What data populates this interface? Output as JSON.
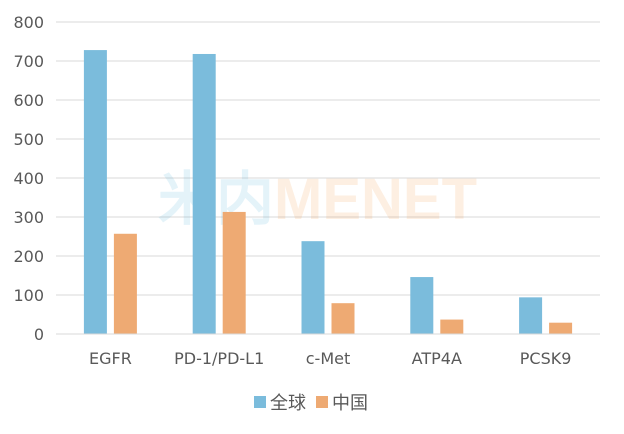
{
  "watermark": {
    "prefix": "米内",
    "suffix": "MENET"
  },
  "chart_data": {
    "type": "bar",
    "categories": [
      "EGFR",
      "PD-1/PD-L1",
      "c-Met",
      "ATP4A",
      "PCSK9"
    ],
    "series": [
      {
        "name": "全球",
        "color": "#7bbcdc",
        "values": [
          728,
          718,
          238,
          146,
          94
        ]
      },
      {
        "name": "中国",
        "color": "#eeaa73",
        "values": [
          257,
          313,
          79,
          37,
          29
        ]
      }
    ],
    "title": "",
    "xlabel": "",
    "ylabel": "",
    "ylim": [
      0,
      800
    ],
    "yticks": [
      0,
      100,
      200,
      300,
      400,
      500,
      600,
      700,
      800
    ],
    "grid": true,
    "legend": "bottom-center"
  }
}
